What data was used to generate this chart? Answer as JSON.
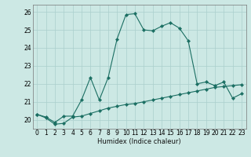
{
  "xlabel": "Humidex (Indice chaleur)",
  "background_color": "#cce8e4",
  "grid_color": "#aacfcc",
  "line_color": "#1a6e62",
  "x_values": [
    0,
    1,
    2,
    3,
    4,
    5,
    6,
    7,
    8,
    9,
    10,
    11,
    12,
    13,
    14,
    15,
    16,
    17,
    18,
    19,
    20,
    21,
    22,
    23
  ],
  "line1_y": [
    20.3,
    20.15,
    19.85,
    20.2,
    20.2,
    21.1,
    22.35,
    21.1,
    22.35,
    24.5,
    25.85,
    25.9,
    25.0,
    24.95,
    25.2,
    25.4,
    25.1,
    24.4,
    22.0,
    22.1,
    21.9,
    22.1,
    21.2,
    21.45
  ],
  "line2_y": [
    20.3,
    20.1,
    19.75,
    19.8,
    20.15,
    20.2,
    20.35,
    20.5,
    20.65,
    20.75,
    20.85,
    20.9,
    21.0,
    21.1,
    21.2,
    21.3,
    21.4,
    21.5,
    21.6,
    21.7,
    21.8,
    21.85,
    21.9,
    21.95
  ],
  "ylim": [
    19.5,
    26.4
  ],
  "xlim": [
    -0.5,
    23.5
  ],
  "yticks": [
    20,
    21,
    22,
    23,
    24,
    25,
    26
  ],
  "xticks": [
    0,
    1,
    2,
    3,
    4,
    5,
    6,
    7,
    8,
    9,
    10,
    11,
    12,
    13,
    14,
    15,
    16,
    17,
    18,
    19,
    20,
    21,
    22,
    23
  ],
  "xtick_labels": [
    "0",
    "1",
    "2",
    "3",
    "4",
    "5",
    "6",
    "7",
    "8",
    "9",
    "10",
    "11",
    "12",
    "13",
    "14",
    "15",
    "16",
    "17",
    "18",
    "19",
    "20",
    "21",
    "22",
    "23"
  ],
  "markersize": 2.2,
  "linewidth": 0.8,
  "tick_fontsize": 5.5,
  "xlabel_fontsize": 6.0
}
